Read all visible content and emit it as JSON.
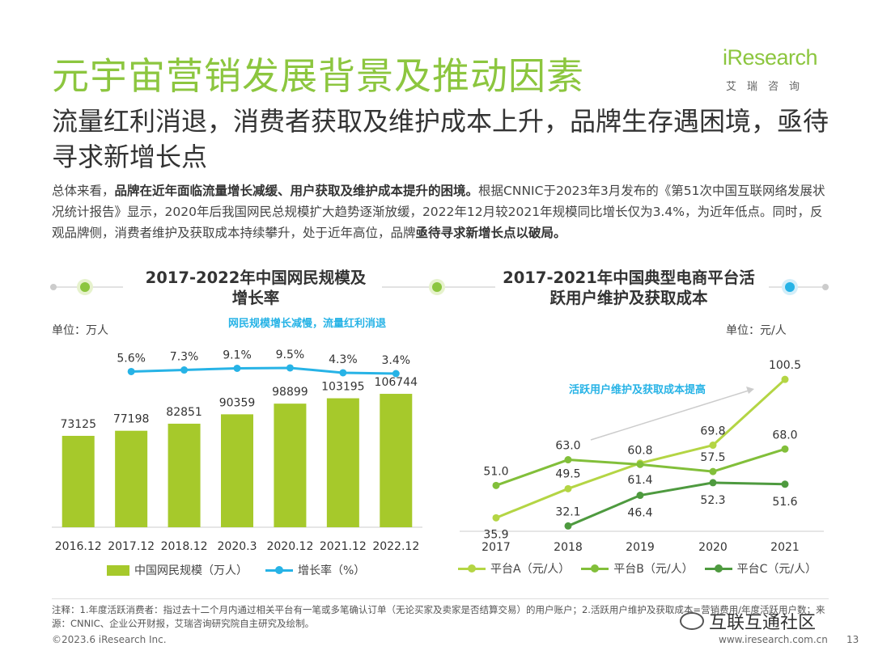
{
  "page": {
    "title": "元宇宙营销发展背景及推动因素",
    "subtitle": "流量红利消退，消费者获取及维护成本上升，品牌生存遇困境，亟待寻求新增长点",
    "summary": {
      "p1": "总体来看，",
      "b1": "品牌在近年面临流量增长减缓、用户获取及维护成本提升的困境。",
      "p2": "根据CNNIC于2023年3月发布的《第51次中国互联网络发展状况统计报告》显示，2020年后我国网民总规模扩大趋势逐渐放缓，2022年12月较2021年规模同比增长仅为3.4%，为近年低点。同时，反观品牌侧，消费者维护及获取成本持续攀升，处于近年高位，品牌",
      "b2": "亟待寻求新增长点以破局。"
    },
    "notes": "注释：1.年度活跃消费者：指过去十二个月内通过相关平台有一笔或多笔确认订单（无论买家及卖家是否结算交易）的用户账户；2.活跃用户维护及获取成本=营销费用/年度活跃用户数；来源：CNNIC、企业公开财报，艾瑞咨询研究院自主研究及绘制。",
    "footer_left": "©2023.6 iResearch Inc.",
    "footer_right": "www.iresearch.com.cn",
    "page_number": "13",
    "watermark": "互联互通社区"
  },
  "logo": {
    "word": "iResearch",
    "sub": "艾瑞咨询"
  },
  "colors": {
    "brand": "#8cc63f",
    "bar": "#a6c92b",
    "rate": "#27b3e6",
    "platformA": "#b4d544",
    "platformB": "#82bf3a",
    "platformC": "#4e9a3f"
  },
  "chart_data": [
    {
      "type": "bar",
      "title": "2017-2022年中国网民规模及增长率",
      "unit_label": "单位：万人",
      "annotation": "网民规模增长减慢，流量红利消退",
      "categories": [
        "2016.12",
        "2017.12",
        "2018.12",
        "2020.3",
        "2020.12",
        "2021.12",
        "2022.12"
      ],
      "series": [
        {
          "name": "中国网民规模（万人）",
          "type": "bar",
          "values": [
            73125,
            77198,
            82851,
            90359,
            98899,
            103195,
            106744
          ]
        },
        {
          "name": "增长率（%）",
          "type": "line",
          "values": [
            null,
            5.6,
            7.3,
            9.1,
            9.5,
            4.3,
            3.4
          ],
          "labels": [
            null,
            "5.6%",
            "7.3%",
            "9.1%",
            "9.5%",
            "4.3%",
            "3.4%"
          ]
        }
      ],
      "legend": [
        "中国网民规模（万人）",
        "增长率（%）"
      ]
    },
    {
      "type": "line",
      "title": "2017-2021年中国典型电商平台活跃用户维护及获取成本",
      "unit_label": "单位：元/人",
      "annotation": "活跃用户维护及获取成本提高",
      "categories": [
        "2017",
        "2018",
        "2019",
        "2020",
        "2021"
      ],
      "series": [
        {
          "name": "平台A（元/人）",
          "values": [
            35.9,
            49.5,
            61.4,
            69.8,
            100.5
          ]
        },
        {
          "name": "平台B（元/人）",
          "values": [
            51.0,
            63.0,
            60.8,
            57.5,
            68.0
          ]
        },
        {
          "name": "平台C（元/人）",
          "values": [
            null,
            32.1,
            46.4,
            52.3,
            51.6
          ]
        }
      ],
      "legend": [
        "平台A（元/人）",
        "平台B（元/人）",
        "平台C（元/人）"
      ]
    }
  ]
}
